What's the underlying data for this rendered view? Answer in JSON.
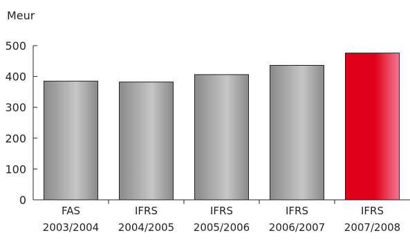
{
  "chart_data": {
    "type": "bar",
    "ylabel": "Meur",
    "categories": [
      [
        "FAS",
        "2003/2004"
      ],
      [
        "IFRS",
        "2004/2005"
      ],
      [
        "IFRS",
        "2005/2006"
      ],
      [
        "IFRS",
        "2006/2007"
      ],
      [
        "IFRS",
        "2007/2008"
      ]
    ],
    "values": [
      385,
      382,
      406,
      436,
      476
    ],
    "highlight_index": 4,
    "ylim": [
      0,
      500
    ],
    "yticks": [
      "0",
      "100",
      "200",
      "300",
      "400",
      "500"
    ],
    "grid": false,
    "colors": {
      "bar_gray_dark": "#8a8a8a",
      "bar_gray_light": "#c6c6c6",
      "bar_red": "#e10019",
      "bar_red_light": "#f07a95",
      "axis": "#231f20"
    }
  }
}
